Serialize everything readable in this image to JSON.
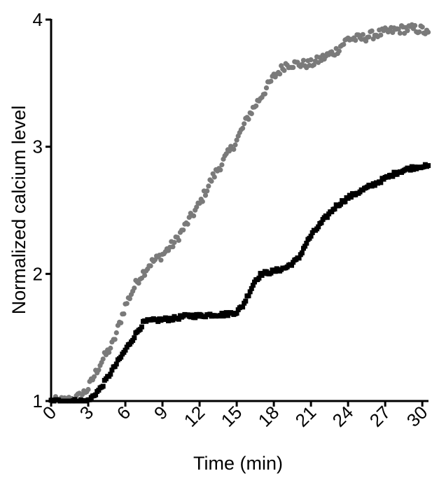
{
  "chart_data": {
    "type": "scatter",
    "title": "",
    "xlabel": "Time (min)",
    "ylabel": "Normalized calcium level",
    "xlim": [
      0,
      30.5
    ],
    "ylim": [
      1,
      4
    ],
    "x_ticks": [
      0,
      3,
      6,
      9,
      12,
      15,
      18,
      21,
      24,
      27,
      30
    ],
    "x_tick_labels": [
      "0",
      "3",
      "6",
      "9",
      "12",
      "15",
      "18",
      "21",
      "24",
      "27",
      "30"
    ],
    "y_ticks": [
      1,
      2,
      3,
      4
    ],
    "y_tick_labels": [
      "1",
      "2",
      "3",
      "4"
    ],
    "grid": false,
    "legend": "none",
    "series": [
      {
        "color": "#7a7a7a",
        "marker": "circle",
        "anchors": [
          [
            0,
            1.0
          ],
          [
            1,
            1.0
          ],
          [
            2,
            1.02
          ],
          [
            2.5,
            1.05
          ],
          [
            3,
            1.1
          ],
          [
            3.5,
            1.2
          ],
          [
            4,
            1.3
          ],
          [
            5,
            1.45
          ],
          [
            6,
            1.75
          ],
          [
            7,
            1.95
          ],
          [
            8,
            2.08
          ],
          [
            9,
            2.15
          ],
          [
            10,
            2.25
          ],
          [
            11,
            2.4
          ],
          [
            12,
            2.55
          ],
          [
            13,
            2.75
          ],
          [
            14,
            2.9
          ],
          [
            15,
            3.05
          ],
          [
            16,
            3.25
          ],
          [
            17,
            3.4
          ],
          [
            18,
            3.55
          ],
          [
            19,
            3.65
          ],
          [
            20,
            3.65
          ],
          [
            21,
            3.65
          ],
          [
            22,
            3.7
          ],
          [
            23,
            3.75
          ],
          [
            24,
            3.85
          ],
          [
            25,
            3.85
          ],
          [
            26,
            3.88
          ],
          [
            27,
            3.9
          ],
          [
            28,
            3.92
          ],
          [
            29,
            3.93
          ],
          [
            30,
            3.92
          ],
          [
            30.5,
            3.88
          ]
        ]
      },
      {
        "color": "#000000",
        "marker": "square",
        "anchors": [
          [
            0,
            1.0
          ],
          [
            1,
            1.0
          ],
          [
            2,
            1.0
          ],
          [
            3,
            1.0
          ],
          [
            3.5,
            1.05
          ],
          [
            4,
            1.1
          ],
          [
            5,
            1.25
          ],
          [
            6,
            1.4
          ],
          [
            7,
            1.55
          ],
          [
            7.5,
            1.62
          ],
          [
            8,
            1.63
          ],
          [
            9,
            1.64
          ],
          [
            10,
            1.65
          ],
          [
            11,
            1.67
          ],
          [
            12,
            1.67
          ],
          [
            13,
            1.68
          ],
          [
            14,
            1.68
          ],
          [
            15,
            1.7
          ],
          [
            15.5,
            1.75
          ],
          [
            16,
            1.85
          ],
          [
            16.5,
            1.95
          ],
          [
            17,
            2.0
          ],
          [
            18,
            2.02
          ],
          [
            19,
            2.05
          ],
          [
            20,
            2.12
          ],
          [
            20.5,
            2.22
          ],
          [
            21,
            2.3
          ],
          [
            22,
            2.42
          ],
          [
            23,
            2.53
          ],
          [
            24,
            2.6
          ],
          [
            25,
            2.65
          ],
          [
            26,
            2.7
          ],
          [
            27,
            2.75
          ],
          [
            28,
            2.8
          ],
          [
            29,
            2.83
          ],
          [
            30,
            2.85
          ],
          [
            30.5,
            2.84
          ]
        ]
      }
    ]
  }
}
